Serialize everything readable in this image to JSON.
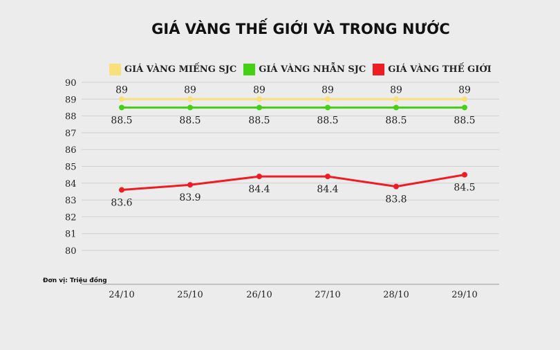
{
  "chart_data": {
    "type": "line",
    "title": "GIÁ VÀNG THẾ GIỚI VÀ TRONG NƯỚC",
    "unit_note": "Đơn vị: Triệu đồng",
    "categories": [
      "24/10",
      "25/10",
      "26/10",
      "27/10",
      "28/10",
      "29/10"
    ],
    "ylim": [
      80,
      90
    ],
    "yticks": [
      80,
      81,
      82,
      83,
      84,
      85,
      86,
      87,
      88,
      89,
      90
    ],
    "grid": true,
    "legend_position": "top",
    "series": [
      {
        "name": "GIÁ VÀNG MIẾNG SJC",
        "color": "#f9e07a",
        "values": [
          89,
          89,
          89,
          89,
          89,
          89
        ],
        "labels": [
          "89",
          "89",
          "89",
          "89",
          "89",
          "89"
        ],
        "label_position": "above"
      },
      {
        "name": "GIÁ VÀNG NHẪN SJC",
        "color": "#44d015",
        "values": [
          88.5,
          88.5,
          88.5,
          88.5,
          88.5,
          88.5
        ],
        "labels": [
          "88.5",
          "88.5",
          "88.5",
          "88.5",
          "88.5",
          "88.5"
        ],
        "label_position": "below"
      },
      {
        "name": "GIÁ VÀNG THẾ GIỚI",
        "color": "#ee1c23",
        "values": [
          83.6,
          83.9,
          84.4,
          84.4,
          83.8,
          84.5
        ],
        "labels": [
          "83.6",
          "83.9",
          "84.4",
          "84.4",
          "83.8",
          "84.5"
        ],
        "label_position": "below"
      }
    ]
  }
}
